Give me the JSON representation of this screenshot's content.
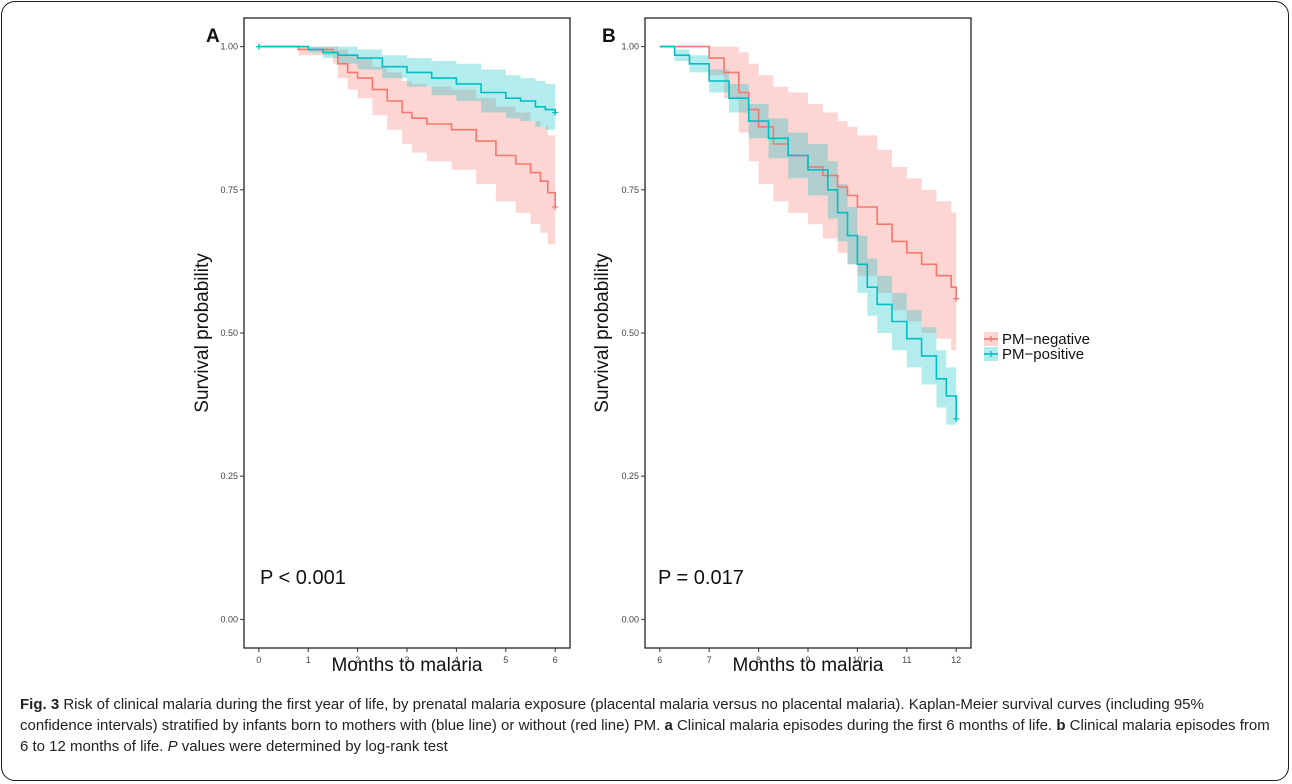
{
  "chart_data": [
    {
      "type": "line",
      "panel_label": "A",
      "xlabel": "Months to malaria",
      "ylabel": "Survival probability",
      "xlim": [
        -0.3,
        6.3
      ],
      "ylim": [
        -0.05,
        1.05
      ],
      "x_ticks": [
        0,
        1,
        2,
        3,
        4,
        5,
        6
      ],
      "y_ticks": [
        0.0,
        0.25,
        0.5,
        0.75,
        1.0
      ],
      "y_tick_labels": [
        "0.00",
        "0.25",
        "0.50",
        "0.75",
        "1.00"
      ],
      "annotation": "P < 0.001",
      "grid": false,
      "series": [
        {
          "name": "PM−negative",
          "color": "#F8766D",
          "x": [
            0,
            0.8,
            1.5,
            1.6,
            1.8,
            2.0,
            2.3,
            2.6,
            2.9,
            3.1,
            3.4,
            3.9,
            4.4,
            4.8,
            5.2,
            5.5,
            5.7,
            5.85,
            6.0
          ],
          "y": [
            1.0,
            0.995,
            0.99,
            0.97,
            0.955,
            0.945,
            0.925,
            0.905,
            0.885,
            0.875,
            0.865,
            0.855,
            0.835,
            0.81,
            0.795,
            0.78,
            0.765,
            0.745,
            0.72
          ],
          "lower": [
            1.0,
            0.985,
            0.97,
            0.945,
            0.925,
            0.91,
            0.88,
            0.855,
            0.83,
            0.815,
            0.8,
            0.785,
            0.76,
            0.73,
            0.71,
            0.69,
            0.675,
            0.655,
            0.64
          ],
          "upper": [
            1.0,
            1.0,
            1.0,
            0.995,
            0.985,
            0.98,
            0.965,
            0.955,
            0.94,
            0.935,
            0.93,
            0.925,
            0.91,
            0.895,
            0.885,
            0.87,
            0.86,
            0.845,
            0.83
          ]
        },
        {
          "name": "PM−positive",
          "color": "#00BFC4",
          "x": [
            0,
            0.5,
            1.0,
            1.3,
            1.6,
            2.0,
            2.5,
            3.0,
            3.5,
            4.0,
            4.5,
            5.0,
            5.3,
            5.6,
            5.8,
            6.0
          ],
          "y": [
            1.0,
            1.0,
            0.995,
            0.99,
            0.985,
            0.98,
            0.965,
            0.955,
            0.945,
            0.935,
            0.92,
            0.91,
            0.905,
            0.895,
            0.89,
            0.885
          ],
          "lower": [
            1.0,
            1.0,
            0.99,
            0.98,
            0.97,
            0.96,
            0.945,
            0.93,
            0.915,
            0.905,
            0.885,
            0.875,
            0.87,
            0.86,
            0.855,
            0.85
          ],
          "upper": [
            1.0,
            1.0,
            1.0,
            1.0,
            1.0,
            0.995,
            0.985,
            0.98,
            0.975,
            0.97,
            0.96,
            0.95,
            0.945,
            0.94,
            0.935,
            0.93
          ]
        }
      ]
    },
    {
      "type": "line",
      "panel_label": "B",
      "xlabel": "Months to malaria",
      "ylabel": "Survival probability",
      "xlim": [
        5.7,
        12.3
      ],
      "ylim": [
        -0.05,
        1.05
      ],
      "x_ticks": [
        6,
        7,
        8,
        9,
        10,
        11,
        12
      ],
      "y_ticks": [
        0.0,
        0.25,
        0.5,
        0.75,
        1.0
      ],
      "y_tick_labels": [
        "0.00",
        "0.25",
        "0.50",
        "0.75",
        "1.00"
      ],
      "annotation": "P = 0.017",
      "grid": false,
      "series": [
        {
          "name": "PM−negative",
          "color": "#F8766D",
          "x": [
            6.0,
            6.7,
            7.0,
            7.3,
            7.6,
            7.8,
            8.0,
            8.3,
            8.6,
            9.0,
            9.3,
            9.6,
            9.8,
            10.0,
            10.4,
            10.7,
            11.0,
            11.3,
            11.6,
            11.9,
            12.0
          ],
          "y": [
            1.0,
            1.0,
            0.98,
            0.955,
            0.92,
            0.89,
            0.86,
            0.83,
            0.81,
            0.79,
            0.775,
            0.755,
            0.74,
            0.72,
            0.69,
            0.66,
            0.64,
            0.62,
            0.6,
            0.58,
            0.56
          ],
          "lower": [
            1.0,
            1.0,
            0.95,
            0.91,
            0.85,
            0.8,
            0.76,
            0.73,
            0.71,
            0.69,
            0.665,
            0.64,
            0.62,
            0.6,
            0.57,
            0.54,
            0.52,
            0.5,
            0.49,
            0.47,
            0.46
          ],
          "upper": [
            1.0,
            1.0,
            1.0,
            1.0,
            0.99,
            0.97,
            0.95,
            0.93,
            0.92,
            0.9,
            0.885,
            0.87,
            0.86,
            0.845,
            0.82,
            0.79,
            0.77,
            0.75,
            0.73,
            0.71,
            0.7
          ]
        },
        {
          "name": "PM−positive",
          "color": "#00BFC4",
          "x": [
            6.0,
            6.3,
            6.6,
            7.0,
            7.4,
            7.8,
            8.2,
            8.6,
            9.0,
            9.4,
            9.6,
            9.8,
            10.0,
            10.2,
            10.4,
            10.7,
            11.0,
            11.3,
            11.6,
            11.8,
            12.0
          ],
          "y": [
            1.0,
            0.985,
            0.97,
            0.94,
            0.91,
            0.87,
            0.84,
            0.81,
            0.785,
            0.75,
            0.71,
            0.67,
            0.62,
            0.58,
            0.55,
            0.52,
            0.49,
            0.46,
            0.42,
            0.39,
            0.35
          ],
          "lower": [
            1.0,
            0.975,
            0.955,
            0.92,
            0.885,
            0.84,
            0.805,
            0.77,
            0.74,
            0.7,
            0.66,
            0.62,
            0.57,
            0.53,
            0.5,
            0.47,
            0.44,
            0.41,
            0.37,
            0.34,
            0.31
          ],
          "upper": [
            1.0,
            0.995,
            0.985,
            0.96,
            0.935,
            0.9,
            0.875,
            0.85,
            0.83,
            0.8,
            0.76,
            0.72,
            0.67,
            0.63,
            0.6,
            0.57,
            0.54,
            0.51,
            0.47,
            0.44,
            0.4
          ]
        }
      ]
    }
  ],
  "legend": {
    "items": [
      {
        "label": "PM−negative",
        "color": "#F8766D"
      },
      {
        "label": "PM−positive",
        "color": "#00BFC4"
      }
    ]
  },
  "caption": {
    "fig_label": "Fig. 3",
    "text1": " Risk of clinical malaria during the first year of life, by prenatal malaria exposure (placental malaria versus no placental malaria). Kaplan-Meier survival curves (including 95% confidence intervals) stratified by infants born to mothers with (blue line) or without (red line) PM. ",
    "a_label": "a",
    "a_text": " Clinical malaria episodes during the first 6 months of life. ",
    "b_label": "b",
    "b_text": " Clinical malaria episodes from 6 to 12 months of life. ",
    "p_label": "P",
    "p_text": " values were determined by log-rank test"
  }
}
